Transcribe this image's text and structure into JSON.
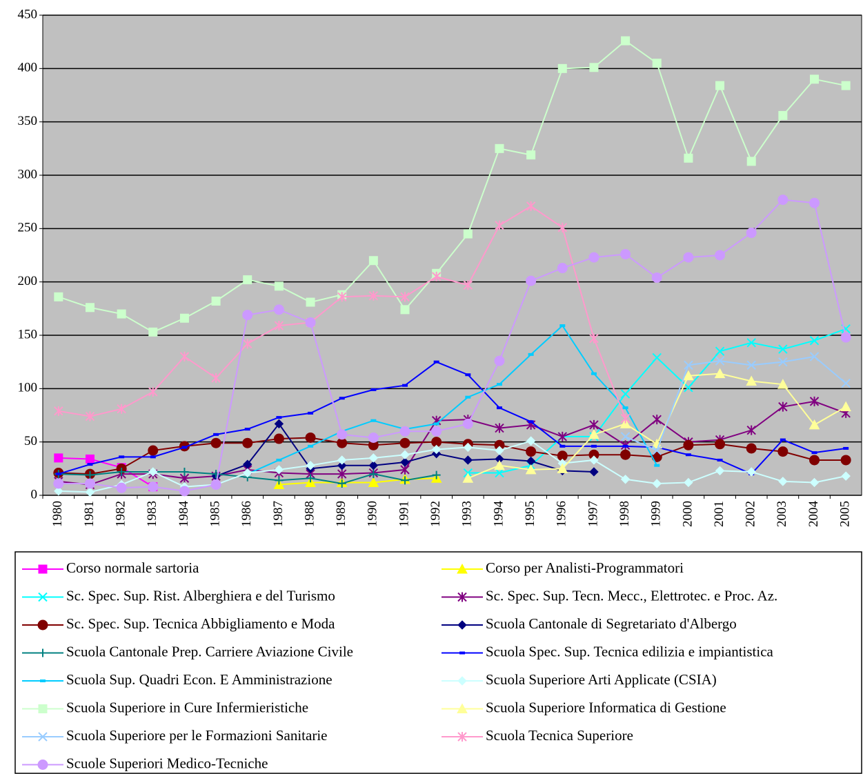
{
  "chart_data": {
    "type": "line",
    "categories": [
      "1980",
      "1981",
      "1982",
      "1983",
      "1984",
      "1985",
      "1986",
      "1987",
      "1988",
      "1989",
      "1990",
      "1991",
      "1992",
      "1993",
      "1994",
      "1995",
      "1996",
      "1997",
      "1998",
      "1999",
      "2000",
      "2001",
      "2002",
      "2003",
      "2004",
      "2005"
    ],
    "ylim": [
      0,
      450
    ],
    "yticks": [
      0,
      50,
      100,
      150,
      200,
      250,
      300,
      350,
      400,
      450
    ],
    "grid": true,
    "series": [
      {
        "name": "Corso normale sartoria",
        "color": "#FF00FF",
        "marker": "square",
        "values": [
          35,
          34,
          26,
          8,
          null,
          null,
          null,
          null,
          null,
          null,
          null,
          null,
          null,
          null,
          null,
          null,
          null,
          null,
          null,
          null,
          null,
          null,
          null,
          null,
          null,
          null
        ]
      },
      {
        "name": "Corso per Analisti-Programmatori",
        "color": "#FFFF00",
        "marker": "triangle",
        "values": [
          null,
          null,
          null,
          null,
          null,
          null,
          null,
          10,
          12,
          12,
          12,
          15,
          16,
          null,
          null,
          null,
          null,
          null,
          null,
          null,
          null,
          null,
          null,
          null,
          null,
          null
        ]
      },
      {
        "name": "Sc. Spec. Sup. Rist. Alberghiera e del Turismo",
        "color": "#00FFFF",
        "marker": "x",
        "values": [
          null,
          null,
          null,
          null,
          null,
          null,
          null,
          null,
          null,
          null,
          null,
          null,
          null,
          21,
          21,
          28,
          55,
          55,
          95,
          129,
          101,
          135,
          143,
          137,
          145,
          156
        ]
      },
      {
        "name": "Sc. Spec. Sup. Tecn. Mecc., Elettrotec. e Proc. Az.",
        "color": "#800080",
        "marker": "asterisk",
        "values": [
          13,
          10,
          20,
          20,
          16,
          18,
          24,
          21,
          20,
          20,
          21,
          24,
          70,
          71,
          63,
          66,
          55,
          66,
          47,
          71,
          50,
          52,
          61,
          83,
          88,
          77
        ]
      },
      {
        "name": "Sc. Spec. Sup. Tecnica Abbigliamento e Moda",
        "color": "#800000",
        "marker": "circle",
        "values": [
          21,
          20,
          25,
          42,
          46,
          49,
          49,
          53,
          54,
          49,
          47,
          49,
          50,
          48,
          47,
          41,
          37,
          38,
          38,
          36,
          47,
          48,
          44,
          41,
          33,
          33
        ]
      },
      {
        "name": "Scuola Cantonale di Segretariato d'Albergo",
        "color": "#000080",
        "marker": "diamond",
        "values": [
          null,
          null,
          null,
          null,
          null,
          18,
          29,
          67,
          25,
          28,
          28,
          31,
          39,
          33,
          34,
          32,
          23,
          22,
          null,
          null,
          null,
          null,
          null,
          null,
          null,
          null
        ]
      },
      {
        "name": "Scuola Cantonale Prep. Carriere Aviazione Civile",
        "color": "#008080",
        "marker": "plus",
        "values": [
          20,
          19,
          22,
          22,
          22,
          20,
          17,
          14,
          16,
          11,
          20,
          14,
          19,
          null,
          null,
          null,
          null,
          null,
          null,
          null,
          null,
          null,
          null,
          null,
          null,
          null
        ]
      },
      {
        "name": "Scuola Spec. Sup. Tecnica edilizia e impiantistica",
        "color": "#0000FF",
        "marker": "dash",
        "values": [
          20,
          29,
          36,
          36,
          45,
          57,
          62,
          73,
          77,
          91,
          99,
          103,
          125,
          113,
          82,
          69,
          46,
          46,
          46,
          45,
          38,
          33,
          20,
          52,
          40,
          44
        ]
      },
      {
        "name": "Scuola Sup. Quadri Econ. E Amministrazione",
        "color": "#00CCFF",
        "marker": "dash",
        "values": [
          null,
          null,
          null,
          null,
          null,
          null,
          20,
          33,
          46,
          60,
          70,
          62,
          67,
          92,
          104,
          132,
          159,
          114,
          82,
          28,
          null,
          null,
          null,
          null,
          null,
          null
        ]
      },
      {
        "name": "Scuola Superiore Arti Applicate (CSIA)",
        "color": "#CCFFFF",
        "marker": "diamond",
        "values": [
          4,
          3,
          10,
          22,
          8,
          10,
          21,
          24,
          28,
          33,
          35,
          38,
          43,
          45,
          42,
          51,
          30,
          33,
          15,
          11,
          12,
          23,
          22,
          13,
          12,
          18
        ]
      },
      {
        "name": "Scuola Superiore in Cure Infermieristiche",
        "color": "#CCFFCC",
        "marker": "square",
        "values": [
          186,
          176,
          170,
          153,
          166,
          182,
          202,
          196,
          181,
          188,
          220,
          174,
          208,
          245,
          325,
          319,
          400,
          401,
          426,
          405,
          316,
          384,
          313,
          356,
          390,
          384
        ]
      },
      {
        "name": "Scuola Superiore Informatica di Gestione",
        "color": "#FFFF99",
        "marker": "triangle",
        "values": [
          null,
          null,
          null,
          null,
          null,
          null,
          null,
          null,
          null,
          null,
          null,
          null,
          null,
          16,
          28,
          24,
          25,
          57,
          67,
          48,
          112,
          114,
          107,
          104,
          66,
          83
        ]
      },
      {
        "name": "Scuola Superiore per le Formazioni Sanitarie",
        "color": "#99CCFF",
        "marker": "x",
        "values": [
          null,
          null,
          null,
          null,
          null,
          null,
          null,
          null,
          null,
          null,
          null,
          null,
          null,
          null,
          null,
          null,
          null,
          null,
          55,
          42,
          122,
          126,
          122,
          125,
          130,
          105
        ]
      },
      {
        "name": "Scuola Tecnica Superiore",
        "color": "#FF99CC",
        "marker": "asterisk",
        "values": [
          79,
          74,
          81,
          97,
          130,
          110,
          142,
          159,
          162,
          186,
          187,
          186,
          205,
          197,
          253,
          271,
          251,
          147,
          72,
          null,
          null,
          null,
          null,
          null,
          null,
          null
        ]
      },
      {
        "name": "Scuole Superiori Medico-Tecniche",
        "color": "#CC99FF",
        "marker": "circle",
        "values": [
          11,
          11,
          7,
          8,
          4,
          10,
          169,
          174,
          162,
          57,
          54,
          60,
          60,
          67,
          126,
          201,
          213,
          223,
          226,
          204,
          223,
          225,
          246,
          277,
          274,
          148
        ]
      }
    ]
  }
}
